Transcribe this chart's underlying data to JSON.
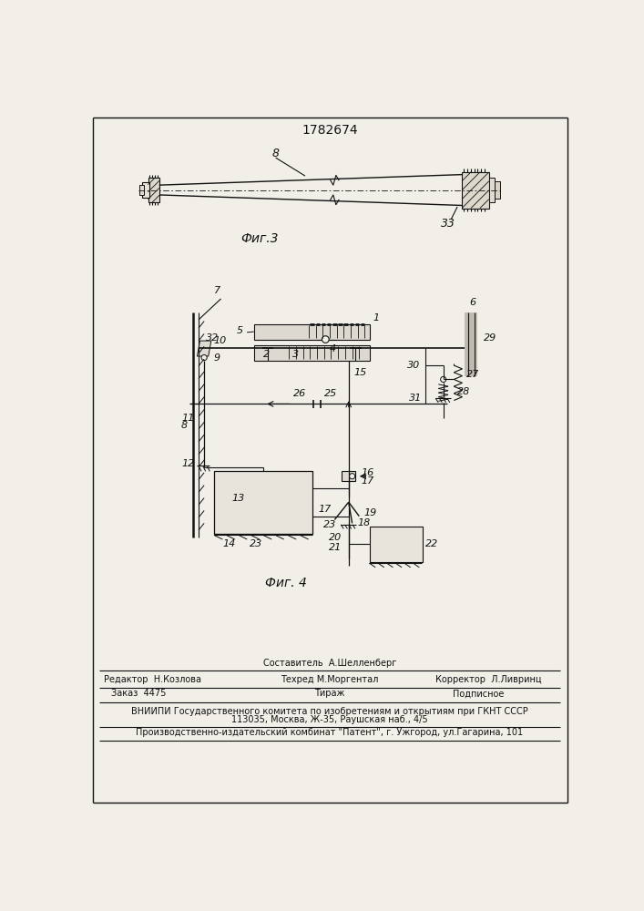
{
  "title": "1782674",
  "fig3_label": "Фиг.3",
  "fig4_label": "Фиг. 4",
  "footer_sestavitel": "Составитель  А.Шелленберг",
  "footer_editor": "Редактор  Н.Козлова",
  "footer_tehred": "Техред М.Моргентал",
  "footer_korrektor": "Корректор  Л.Ливринц",
  "footer_zakaz": "Заказ  4475",
  "footer_tirazh": "Тираж",
  "footer_podpisnoe": "Подписное",
  "footer_vniip": "ВНИИПИ Государственного комитета по изобретениям и открытиям при ГКНТ СССР",
  "footer_addr": "113035, Москва, Ж-35, Раушская наб., 4/5",
  "footer_patent": "Производственно-издательский комбинат \"Патент\", г. Ужгород, ул.Гагарина, 101",
  "bg_color": "#f2efe9",
  "lc": "#111111"
}
